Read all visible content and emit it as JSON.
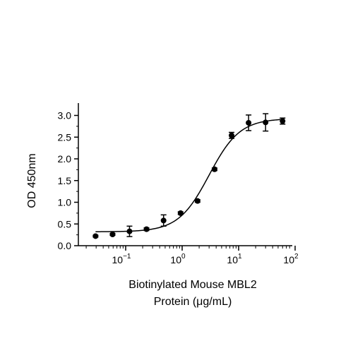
{
  "chart_data": {
    "type": "scatter",
    "title": "",
    "xlabel": [
      "Biotinylated Mouse MBL2",
      "Protein (μg/mL)"
    ],
    "ylabel": "OD 450nm",
    "xscale": "log",
    "xlim": [
      0.02,
      100
    ],
    "ylim": [
      0,
      3.2
    ],
    "grid": false,
    "legend": "none",
    "x_ticks": [
      {
        "value": 0.1,
        "base": "10",
        "exp": "−1"
      },
      {
        "value": 1,
        "base": "10",
        "exp": "0"
      },
      {
        "value": 10,
        "base": "10",
        "exp": "1"
      },
      {
        "value": 100,
        "base": "10",
        "exp": "2"
      }
    ],
    "y_ticks": [
      {
        "value": 0.0,
        "label": "0.0"
      },
      {
        "value": 0.5,
        "label": "0.5"
      },
      {
        "value": 1.0,
        "label": "1.0"
      },
      {
        "value": 1.5,
        "label": "1.5"
      },
      {
        "value": 2.0,
        "label": "2.0"
      },
      {
        "value": 2.5,
        "label": "2.5"
      },
      {
        "value": 3.0,
        "label": "3.0"
      }
    ],
    "series": [
      {
        "x": [
          0.0293,
          0.0586,
          0.117,
          0.234,
          0.469,
          0.938,
          1.875,
          3.75,
          7.5,
          15,
          30,
          60
        ],
        "y": [
          0.22,
          0.26,
          0.33,
          0.38,
          0.58,
          0.75,
          1.03,
          1.76,
          2.54,
          2.83,
          2.84,
          2.87
        ],
        "error": [
          0.02,
          0.02,
          0.12,
          0.03,
          0.13,
          0.03,
          0.03,
          0.03,
          0.07,
          0.18,
          0.2,
          0.07
        ],
        "color": "#000000"
      }
    ],
    "fit": {
      "model": "4PL",
      "bottom": 0.32,
      "top": 2.93,
      "ec50": 3.0,
      "hill": 1.6
    }
  }
}
